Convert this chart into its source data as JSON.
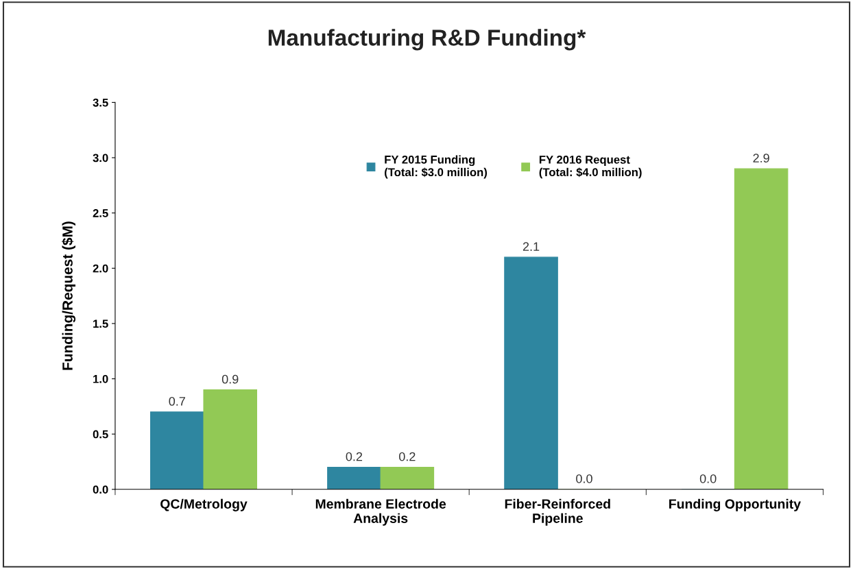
{
  "chart_data": {
    "type": "bar",
    "title": "Manufacturing R&D Funding*",
    "ylabel": "Funding/Request ($M)",
    "categories": [
      "QC/Metrology",
      "Membrane Electrode\nAnalysis",
      "Fiber-Reinforced\nPipeline",
      "Funding Opportunity"
    ],
    "series": [
      {
        "name": "FY 2015 Funding\n(Total: $3.0 million)",
        "color": "#2e86a0",
        "values": [
          0.7,
          0.2,
          2.1,
          0.0
        ],
        "value_labels": [
          "0.7",
          "0.2",
          "2.1",
          "0.0"
        ]
      },
      {
        "name": "FY 2016 Request\n(Total: $4.0 million)",
        "color": "#92c955",
        "values": [
          0.9,
          0.2,
          0.0,
          2.9
        ],
        "value_labels": [
          "0.9",
          "0.2",
          "0.0",
          "2.9"
        ]
      }
    ],
    "ylim": [
      0,
      3.5
    ],
    "yticks": [
      {
        "value": 0,
        "label": "0.0"
      },
      {
        "value": 0.5,
        "label": "0.5"
      },
      {
        "value": 1,
        "label": "1.0"
      },
      {
        "value": 1.5,
        "label": "1.5"
      },
      {
        "value": 2,
        "label": "2.0"
      },
      {
        "value": 2.5,
        "label": "2.5"
      },
      {
        "value": 3,
        "label": "3.0"
      },
      {
        "value": 3.5,
        "label": "3.5"
      }
    ],
    "grid": false,
    "legend": "top"
  }
}
